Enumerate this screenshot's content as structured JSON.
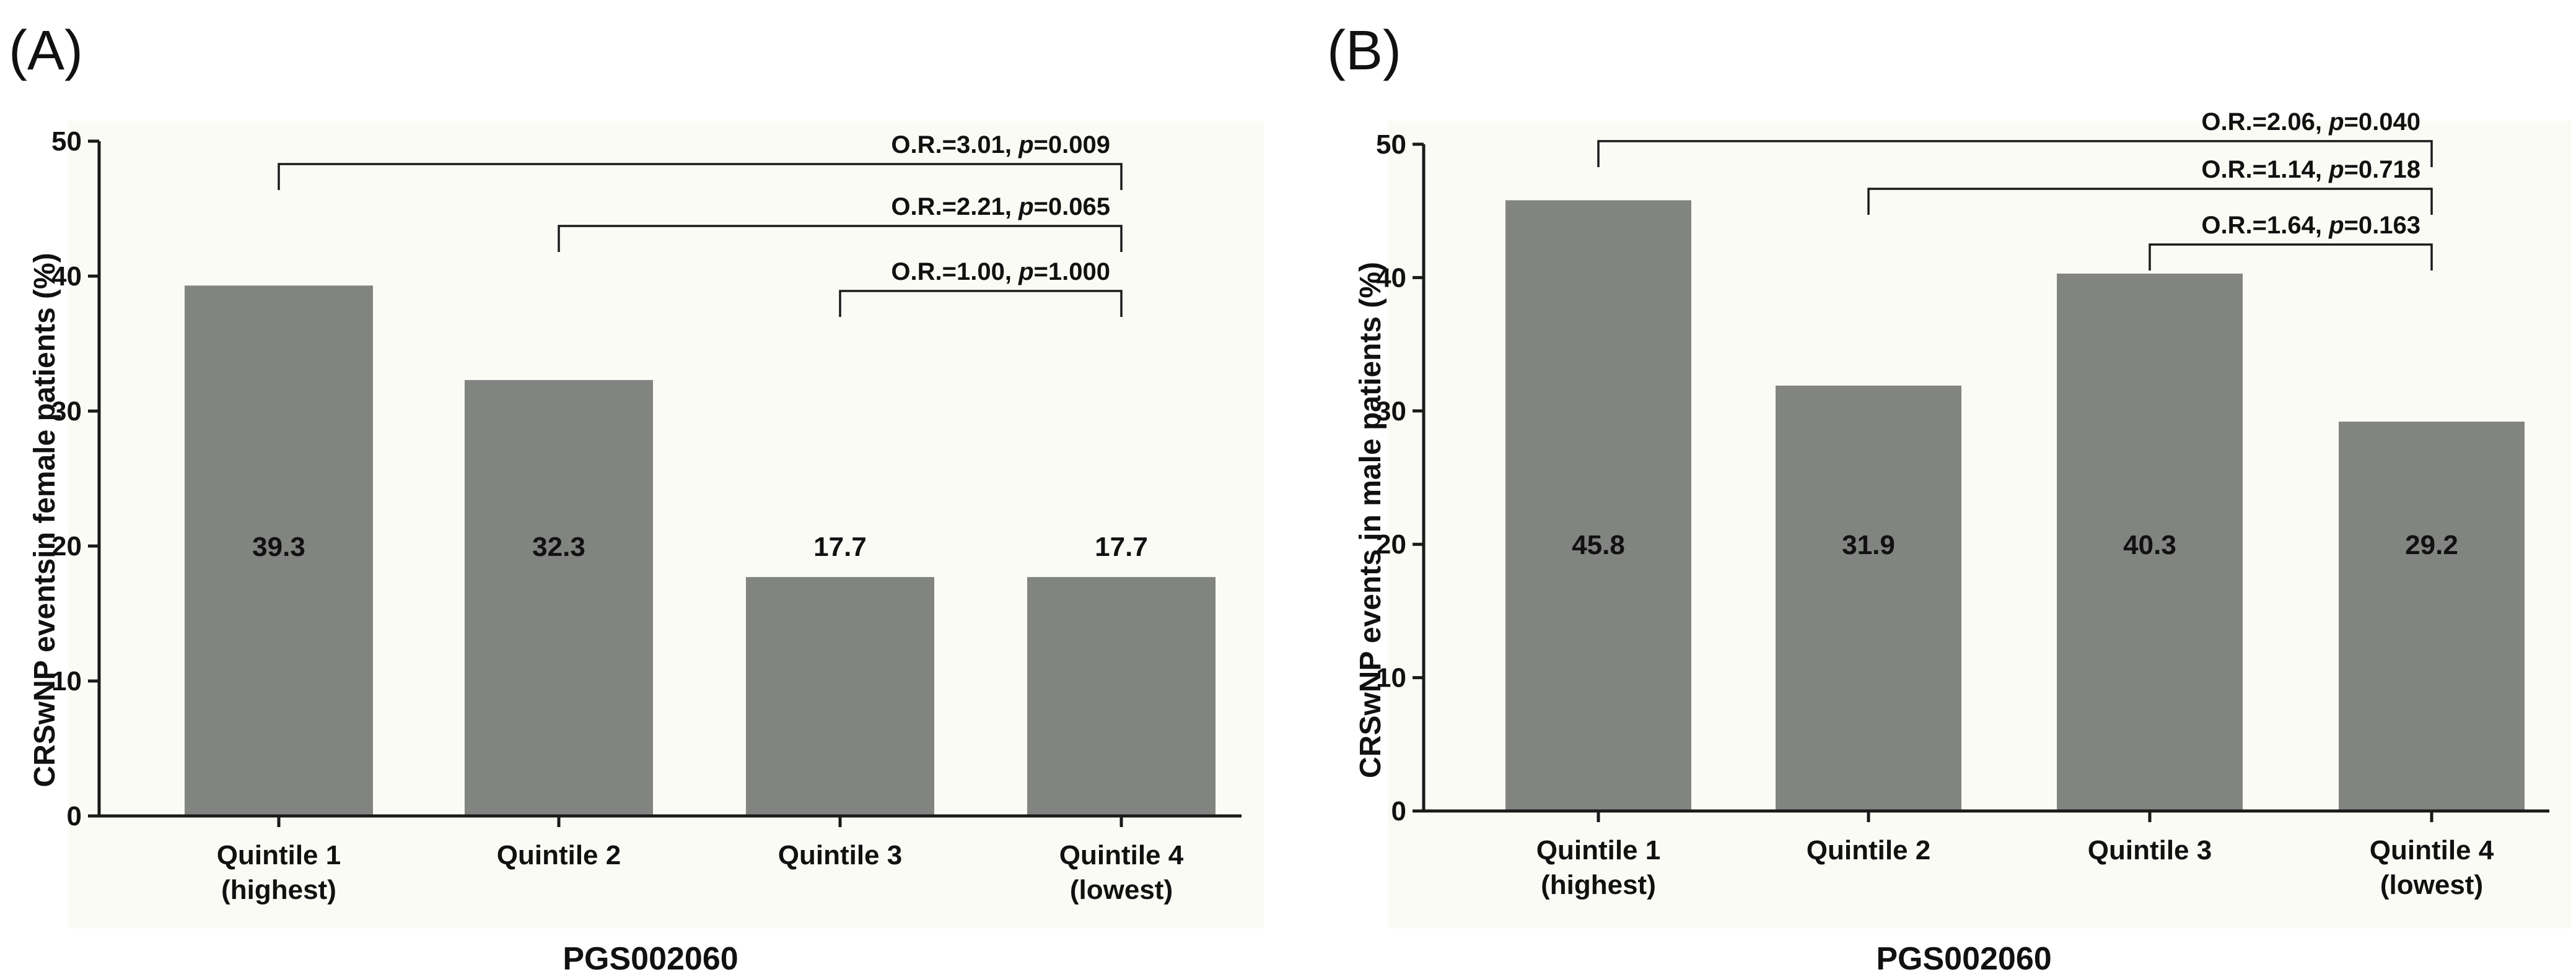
{
  "colors": {
    "bar": "#828481",
    "plot_background": "#fbfbf6",
    "axis": "#1a1a1a"
  },
  "chart_data": [
    {
      "type": "bar",
      "panel_label": "(A)",
      "categories": [
        [
          "Quintile 1",
          "(highest)"
        ],
        [
          "Quintile 2",
          ""
        ],
        [
          "Quintile 3",
          ""
        ],
        [
          "Quintile 4",
          "(lowest)"
        ]
      ],
      "values": [
        39.3,
        32.3,
        17.7,
        17.7
      ],
      "value_labels": [
        "39.3",
        "32.3",
        "17.7",
        "17.7"
      ],
      "xlabel": "PGS002060",
      "ylabel": "CRSwNP eventsin female patients (%)",
      "ylim": [
        0,
        50
      ],
      "yticks": [
        0,
        10,
        20,
        30,
        40,
        50
      ],
      "comparisons": [
        {
          "from": 0,
          "to": 3,
          "or_text": "O.R.=3.01, ",
          "p_label": "p",
          "p_text": "=0.009"
        },
        {
          "from": 1,
          "to": 3,
          "or_text": "O.R.=2.21, ",
          "p_label": "p",
          "p_text": "=0.065"
        },
        {
          "from": 2,
          "to": 3,
          "or_text": "O.R.=1.00, ",
          "p_label": "p",
          "p_text": "=1.000"
        }
      ]
    },
    {
      "type": "bar",
      "panel_label": "(B)",
      "categories": [
        [
          "Quintile 1",
          "(highest)"
        ],
        [
          "Quintile 2",
          ""
        ],
        [
          "Quintile 3",
          ""
        ],
        [
          "Quintile 4",
          "(lowest)"
        ]
      ],
      "values": [
        45.8,
        31.9,
        40.3,
        29.2
      ],
      "value_labels": [
        "45.8",
        "31.9",
        "40.3",
        "29.2"
      ],
      "xlabel": "PGS002060",
      "ylabel": "CRSwNP events in male patients (%)",
      "ylim": [
        0,
        50
      ],
      "yticks": [
        0,
        10,
        20,
        30,
        40,
        50
      ],
      "comparisons": [
        {
          "from": 0,
          "to": 3,
          "or_text": "O.R.=2.06, ",
          "p_label": "p",
          "p_text": "=0.040"
        },
        {
          "from": 1,
          "to": 3,
          "or_text": "O.R.=1.14, ",
          "p_label": "p",
          "p_text": "=0.718"
        },
        {
          "from": 2,
          "to": 3,
          "or_text": "O.R.=1.64, ",
          "p_label": "p",
          "p_text": "=0.163"
        }
      ]
    }
  ]
}
